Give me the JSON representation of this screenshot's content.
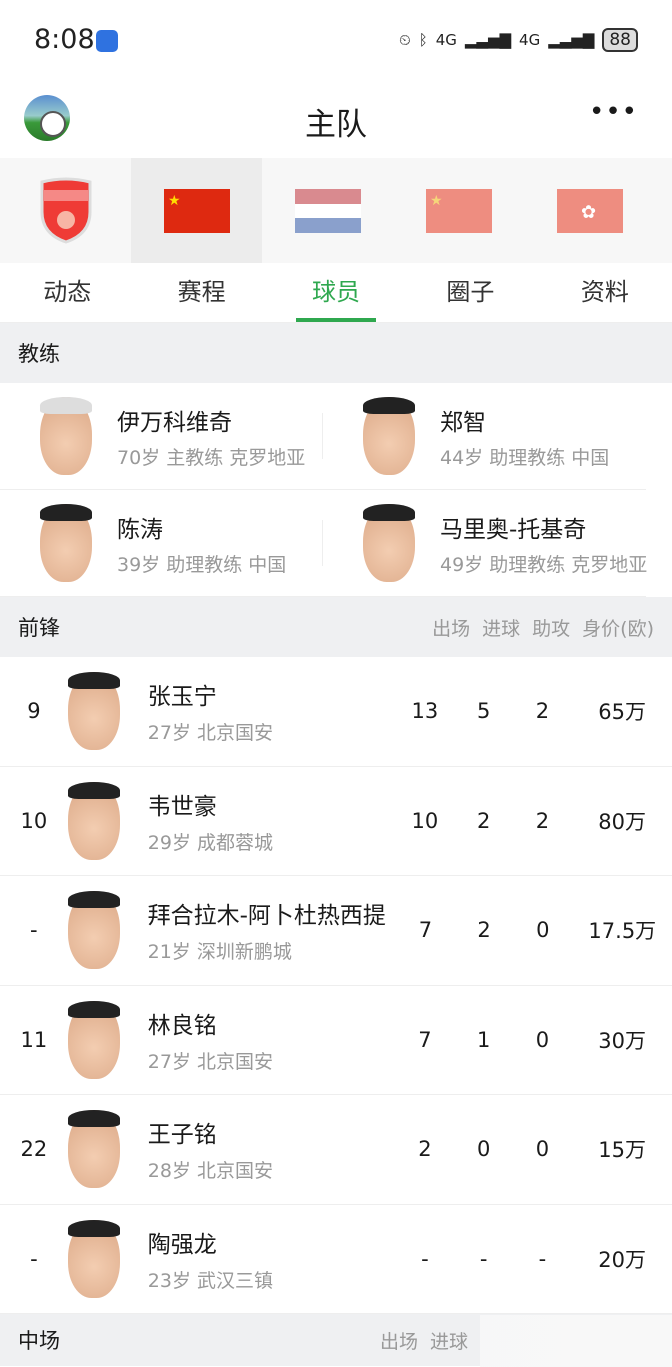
{
  "status": {
    "time": "8:08",
    "battery": "88",
    "network": [
      "4G",
      "4G"
    ]
  },
  "header": {
    "title": "主队",
    "more": "•••"
  },
  "teams": [
    {
      "icon": "arsenal-crest-icon"
    },
    {
      "icon": "china-flag-icon",
      "selected": true
    },
    {
      "icon": "netherlands-flag-icon"
    },
    {
      "icon": "china-flag-icon"
    },
    {
      "icon": "hong-kong-flag-icon"
    }
  ],
  "tabs": [
    {
      "label": "动态"
    },
    {
      "label": "赛程"
    },
    {
      "label": "球员",
      "active": true
    },
    {
      "label": "圈子"
    },
    {
      "label": "资料"
    }
  ],
  "accent": "#2fa84f",
  "coaches": {
    "title": "教练",
    "items": [
      {
        "name": "伊万科维奇",
        "sub": "70岁 主教练 克罗地亚"
      },
      {
        "name": "郑智",
        "sub": "44岁 助理教练 中国"
      },
      {
        "name": "陈涛",
        "sub": "39岁 助理教练 中国"
      },
      {
        "name": "马里奥-托基奇",
        "sub": "49岁 助理教练 克罗地亚"
      }
    ]
  },
  "forwards": {
    "title": "前锋",
    "columns": [
      "出场",
      "进球",
      "助攻",
      "身价(欧)"
    ],
    "players": [
      {
        "number": "9",
        "name": "张玉宁",
        "sub": "27岁 北京国安",
        "apps": "13",
        "goals": "5",
        "assists": "2",
        "value": "65万"
      },
      {
        "number": "10",
        "name": "韦世豪",
        "sub": "29岁 成都蓉城",
        "apps": "10",
        "goals": "2",
        "assists": "2",
        "value": "80万"
      },
      {
        "number": "-",
        "name": "拜合拉木-阿卜杜热西提",
        "sub": "21岁 深圳新鹏城",
        "apps": "7",
        "goals": "2",
        "assists": "0",
        "value": "17.5万"
      },
      {
        "number": "11",
        "name": "林良铭",
        "sub": "27岁 北京国安",
        "apps": "7",
        "goals": "1",
        "assists": "0",
        "value": "30万"
      },
      {
        "number": "22",
        "name": "王子铭",
        "sub": "28岁 北京国安",
        "apps": "2",
        "goals": "0",
        "assists": "0",
        "value": "15万"
      },
      {
        "number": "-",
        "name": "陶强龙",
        "sub": "23岁 武汉三镇",
        "apps": "-",
        "goals": "-",
        "assists": "-",
        "value": "20万"
      }
    ]
  },
  "midfield": {
    "title": "中场",
    "columns": [
      "出场",
      "进球"
    ]
  }
}
